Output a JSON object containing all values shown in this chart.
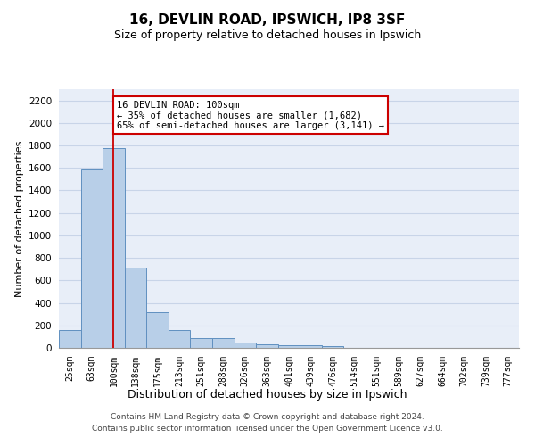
{
  "title1": "16, DEVLIN ROAD, IPSWICH, IP8 3SF",
  "title2": "Size of property relative to detached houses in Ipswich",
  "xlabel": "Distribution of detached houses by size in Ipswich",
  "ylabel": "Number of detached properties",
  "bin_labels": [
    "25sqm",
    "63sqm",
    "100sqm",
    "138sqm",
    "175sqm",
    "213sqm",
    "251sqm",
    "288sqm",
    "326sqm",
    "363sqm",
    "401sqm",
    "439sqm",
    "476sqm",
    "514sqm",
    "551sqm",
    "589sqm",
    "627sqm",
    "664sqm",
    "702sqm",
    "739sqm",
    "777sqm"
  ],
  "bin_values": [
    160,
    1590,
    1780,
    710,
    320,
    160,
    90,
    90,
    50,
    30,
    20,
    20,
    15,
    0,
    0,
    0,
    0,
    0,
    0,
    0,
    0
  ],
  "bar_color": "#b8cfe8",
  "bar_edge_color": "#6090c0",
  "grid_color": "#c8d4e8",
  "background_color": "#e8eef8",
  "red_line_index": 2,
  "annotation_text": "16 DEVLIN ROAD: 100sqm\n← 35% of detached houses are smaller (1,682)\n65% of semi-detached houses are larger (3,141) →",
  "annotation_box_color": "#ffffff",
  "annotation_box_edge": "#cc0000",
  "ylim": [
    0,
    2300
  ],
  "yticks": [
    0,
    200,
    400,
    600,
    800,
    1000,
    1200,
    1400,
    1600,
    1800,
    2000,
    2200
  ],
  "footer1": "Contains HM Land Registry data © Crown copyright and database right 2024.",
  "footer2": "Contains public sector information licensed under the Open Government Licence v3.0."
}
